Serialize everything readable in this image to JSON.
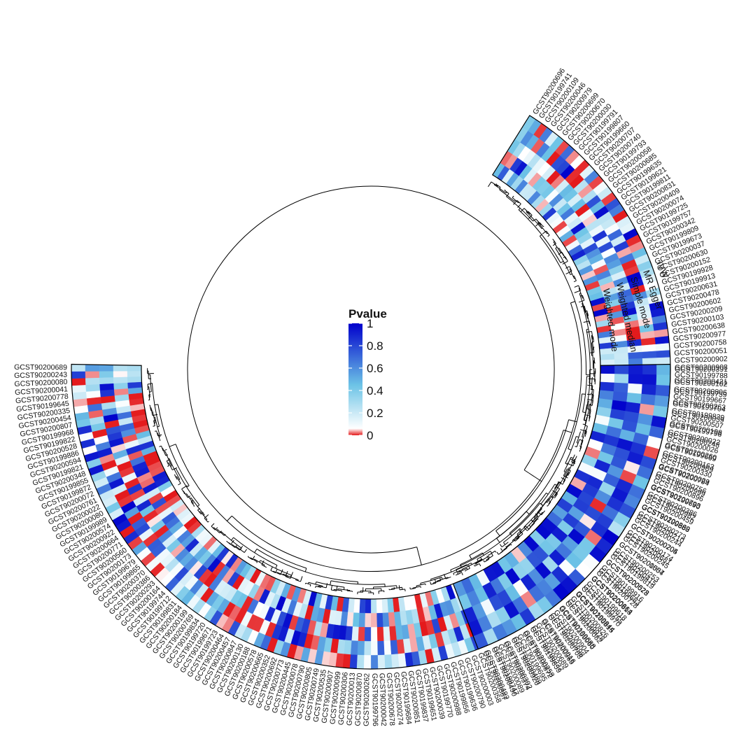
{
  "legend": {
    "title": "Pvalue",
    "ticks": [
      "1",
      "0.8",
      "0.6",
      "0.4",
      "0.2",
      "0"
    ],
    "tick_values": [
      1,
      0.8,
      0.6,
      0.4,
      0.2,
      0
    ],
    "colors": [
      "#e41a1c",
      "#ffffff",
      "#5bc0de",
      "#0000cc"
    ]
  },
  "tracks": [
    {
      "label": "IVW"
    },
    {
      "label": "MR Egger"
    },
    {
      "label": "Simple mode"
    },
    {
      "label": "Weighted median"
    },
    {
      "label": "Weighted mode"
    }
  ],
  "tips_top": [
    "GCST90200696",
    "GCST90199741",
    "GCST90200109",
    "GCST90200046",
    "GCST90200979",
    "GCST90200699",
    "GCST90200670",
    "GCST90200030",
    "GCST90199791",
    "GCST90199807",
    "GCST90199660",
    "GCST90200707",
    "GCST90200740",
    "GCST90199793",
    "GCST90200058",
    "GCST90200685",
    "GCST90199635",
    "GCST90199621",
    "GCST90199811",
    "GCST90200831",
    "GCST90200409",
    "GCST90200074",
    "GCST90199725",
    "GCST90199757",
    "GCST90200342",
    "GCST90199809",
    "GCST90199673",
    "GCST90200037",
    "GCST90200630",
    "GCST90200152",
    "GCST90199928",
    "GCST90199913",
    "GCST90200631",
    "GCST90200478",
    "GCST90200602",
    "GCST90200209",
    "GCST90200103",
    "GCST90200638",
    "GCST90200977",
    "GCST90200758",
    "GCST90200051",
    "GCST90200902",
    "GCST90200908",
    "GCST90199788",
    "GCST90200102",
    "GCST90200806",
    "GCST90199667",
    "GCST90199704",
    "GCST90199839",
    "GCST90200507",
    "GCST90199798",
    "GCST90200022",
    "GCST90200026",
    "GCST90199669",
    "GCST90200163",
    "GCST90200330",
    "GCST90200794",
    "GCST90200756",
    "GCST90200896",
    "GCST90199690",
    "GCST90200386",
    "GCST90200459",
    "GCST90199888",
    "GCST90200273",
    "GCST90200244",
    "GCST90200705",
    "GCST90200174",
    "GCST90200245",
    "GCST90200557",
    "GCST90200253",
    "GCST90199819",
    "GCST90200528",
    "GCST90199916",
    "GCST90200728",
    "GCST90200664",
    "GCST90199618",
    "GCST90199970",
    "GCST90199844",
    "GCST90200826",
    "GCST90200082",
    "GCST90199688",
    "GCST90200904",
    "GCST90200708",
    "GCST90200016",
    "GCST90200689",
    "GCST90199859",
    "GCST90200258",
    "GCST90199695",
    "GCST90200920",
    "GCST90200302",
    "GCST90200089",
    "GCST90200490",
    "GCST90200492",
    "GCST90200358",
    "GCST90200003",
    "GCST90200790",
    "GCST90199636",
    "GCST90199856",
    "GCST90200988",
    "GCST90199770",
    "GCST90200039",
    "GCST90199651",
    "GCST90199837",
    "GCST90200851",
    "GCST90199684",
    "GCST90200274",
    "GCST90200678",
    "GCST90200042",
    "GCST90199796",
    "GCST90200262",
    "GCST90200870",
    "GCST90200013",
    "GCST90200306",
    "GCST90200099",
    "GCST90200907",
    "GCST90200535",
    "GCST90200749",
    "GCST90200805",
    "GCST90200790",
    "GCST90200078",
    "GCST90200445",
    "GCST90200773",
    "GCST90200692",
    "GCST90200352",
    "GCST90200665",
    "GCST90200578",
    "GCST90200188",
    "GCST90200130",
    "GCST90200847",
    "GCST90200457",
    "GCST90200464",
    "GCST90199723",
    "GCST90199671",
    "GCST90199720",
    "GCST90199834",
    "GCST90200769",
    "GCST90200199",
    "GCST90200184",
    "GCST90199831",
    "GCST90199712",
    "GCST90199744",
    "GCST90200164",
    "GCST90200293",
    "GCST90200386",
    "GCST90200370",
    "GCST90199865",
    "GCST90199679",
    "GCST90200173",
    "GCST90200560",
    "GCST90200771",
    "GCST90200664",
    "GCST90200922",
    "GCST90200574",
    "GCST90199989",
    "GCST90200080",
    "GCST90200022",
    "GCST90200761",
    "GCST90200072",
    "GCST90199872",
    "GCST90199855",
    "GCST90200348",
    "GCST90199821",
    "GCST90200594",
    "GCST90199886",
    "GCST90200528",
    "GCST90199822",
    "GCST90199968",
    "GCST90200807",
    "GCST90200454",
    "GCST90200335",
    "GCST90199645",
    "GCST90200778",
    "GCST90200041",
    "GCST90200080",
    "GCST90200243",
    "GCST90200689"
  ],
  "tips_right": [
    "GCST90200391",
    "GCST90200421",
    "GCST90199759",
    "GCST90200263",
    "GCST90200059",
    "GCST90200198",
    "GCST90200248",
    "GCST90200260",
    "GCST90200969",
    "GCST90200029",
    "GCST90200999",
    "GCST90200793",
    "GCST90200982",
    "GCST90200869",
    "GCST90200210",
    "GCST90200204",
    "GCST90200681",
    "GCST90201004",
    "GCST90200415",
    "GCST90200073",
    "GCST90199683",
    "GCST90200813",
    "GCST90200755",
    "GCST90200815",
    "GCST90199978",
    "GCST90200060",
    "GCST90200898",
    "GCST90200365",
    "GCST90200237",
    "GCST90200872",
    "GCST90200489",
    "GCST90200374",
    "GCST90199747",
    "GCST90200867"
  ]
}
